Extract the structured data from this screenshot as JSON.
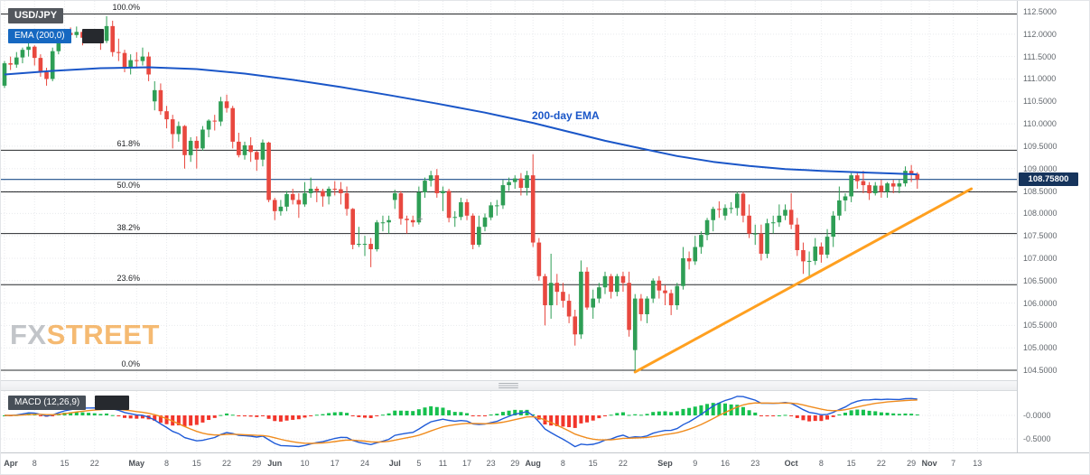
{
  "header": {
    "symbol": "USD/JPY",
    "ema_indicator_label": "EMA (200,0)"
  },
  "annotations": {
    "ema_label": "200-day EMA",
    "watermark_fx": "FX",
    "watermark_street": "STREET",
    "crosshair": "+"
  },
  "macd": {
    "label": "MACD (12,26,9)",
    "axis_labels": [
      {
        "text": "-0.0000",
        "value": 0
      },
      {
        "text": "-0.5000",
        "value": -0.5
      }
    ]
  },
  "price_axis": {
    "current": {
      "text": "108.75800",
      "value": 108.758
    },
    "ticks": [
      {
        "text": "112.5000",
        "value": 112.5
      },
      {
        "text": "112.0000",
        "value": 112.0
      },
      {
        "text": "111.5000",
        "value": 111.5
      },
      {
        "text": "111.0000",
        "value": 111.0
      },
      {
        "text": "110.5000",
        "value": 110.5
      },
      {
        "text": "110.0000",
        "value": 110.0
      },
      {
        "text": "109.5000",
        "value": 109.5
      },
      {
        "text": "109.0000",
        "value": 109.0
      },
      {
        "text": "108.5000",
        "value": 108.5
      },
      {
        "text": "108.0000",
        "value": 108.0
      },
      {
        "text": "107.5000",
        "value": 107.5
      },
      {
        "text": "107.0000",
        "value": 107.0
      },
      {
        "text": "106.5000",
        "value": 106.5
      },
      {
        "text": "106.0000",
        "value": 106.0
      },
      {
        "text": "105.5000",
        "value": 105.5
      },
      {
        "text": "105.0000",
        "value": 105.0
      },
      {
        "text": "104.5000",
        "value": 104.5
      }
    ]
  },
  "time_axis": {
    "labels": [
      {
        "text": "Apr",
        "day": 0
      },
      {
        "text": "8",
        "day": 5
      },
      {
        "text": "15",
        "day": 10
      },
      {
        "text": "22",
        "day": 15
      },
      {
        "text": "May",
        "day": 22
      },
      {
        "text": "8",
        "day": 27
      },
      {
        "text": "15",
        "day": 32
      },
      {
        "text": "22",
        "day": 37
      },
      {
        "text": "29",
        "day": 42
      },
      {
        "text": "Jun",
        "day": 45
      },
      {
        "text": "10",
        "day": 50
      },
      {
        "text": "17",
        "day": 55
      },
      {
        "text": "24",
        "day": 60
      },
      {
        "text": "Jul",
        "day": 65
      },
      {
        "text": "5",
        "day": 69
      },
      {
        "text": "11",
        "day": 73
      },
      {
        "text": "17",
        "day": 77
      },
      {
        "text": "23",
        "day": 81
      },
      {
        "text": "29",
        "day": 85
      },
      {
        "text": "Aug",
        "day": 88
      },
      {
        "text": "8",
        "day": 93
      },
      {
        "text": "15",
        "day": 98
      },
      {
        "text": "22",
        "day": 103
      },
      {
        "text": "Sep",
        "day": 110
      },
      {
        "text": "9",
        "day": 115
      },
      {
        "text": "16",
        "day": 120
      },
      {
        "text": "23",
        "day": 125
      },
      {
        "text": "Oct",
        "day": 131
      },
      {
        "text": "8",
        "day": 136
      },
      {
        "text": "15",
        "day": 141
      },
      {
        "text": "22",
        "day": 146
      },
      {
        "text": "29",
        "day": 151
      },
      {
        "text": "Nov",
        "day": 154
      },
      {
        "text": "7",
        "day": 158
      },
      {
        "text": "13",
        "day": 162
      }
    ]
  },
  "fib_levels": [
    {
      "label": "100.0%",
      "price": 112.45
    },
    {
      "label": "61.8%",
      "price": 109.41
    },
    {
      "label": "50.0%",
      "price": 108.48
    },
    {
      "label": "38.2%",
      "price": 107.55
    },
    {
      "label": "23.6%",
      "price": 106.41
    },
    {
      "label": "0.0%",
      "price": 104.5
    }
  ],
  "colors": {
    "up": "#2e9e55",
    "down": "#e8483f",
    "ema200": "#1a56c8",
    "trendline": "#ffa020",
    "price_line": "#1d4e89",
    "price_badge_bg": "#16345c",
    "fib_line": "#26282b",
    "macd_line": "#1f5bd8",
    "macd_signal": "#f08c1e",
    "macd_hist_up": "#16c04e",
    "macd_hist_down": "#f2352b",
    "symbol_badge_bg": "#53575d",
    "ema_badge_bg": "#1668c1",
    "macd_badge_bg": "#474f58",
    "watermark_fx": "#b4b7bc",
    "watermark_street": "#f3a94f"
  },
  "chart_data": {
    "type": "candlestick",
    "title": "USD/JPY daily with 200-day EMA, Fibonacci retracement and MACD (12,26,9)",
    "ylim": [
      104.5,
      112.5
    ],
    "macd_params": [
      12,
      26,
      9
    ],
    "macd_ylim": [
      -0.75,
      0.45
    ],
    "trendline": {
      "from": {
        "day": 105,
        "price": 104.46
      },
      "to": {
        "day": 161,
        "price": 108.55
      }
    },
    "ema200_anchors": [
      [
        0,
        111.1
      ],
      [
        8,
        111.18
      ],
      [
        16,
        111.24
      ],
      [
        24,
        111.26
      ],
      [
        32,
        111.22
      ],
      [
        40,
        111.12
      ],
      [
        48,
        110.98
      ],
      [
        56,
        110.82
      ],
      [
        64,
        110.64
      ],
      [
        72,
        110.45
      ],
      [
        80,
        110.25
      ],
      [
        88,
        110.02
      ],
      [
        94,
        109.82
      ],
      [
        100,
        109.62
      ],
      [
        106,
        109.45
      ],
      [
        112,
        109.28
      ],
      [
        118,
        109.15
      ],
      [
        124,
        109.06
      ],
      [
        130,
        108.99
      ],
      [
        136,
        108.95
      ],
      [
        142,
        108.92
      ],
      [
        148,
        108.89
      ],
      [
        152,
        108.87
      ]
    ],
    "ohlc": [
      [
        110.85,
        111.4,
        110.8,
        111.35
      ],
      [
        111.35,
        111.5,
        111.2,
        111.32
      ],
      [
        111.32,
        111.6,
        111.25,
        111.48
      ],
      [
        111.48,
        111.7,
        111.35,
        111.65
      ],
      [
        111.65,
        111.8,
        111.5,
        111.72
      ],
      [
        111.72,
        111.75,
        111.3,
        111.47
      ],
      [
        111.47,
        111.55,
        111.05,
        111.15
      ],
      [
        111.15,
        111.25,
        110.85,
        111.0
      ],
      [
        111.0,
        111.7,
        110.95,
        111.62
      ],
      [
        111.62,
        112.05,
        111.55,
        111.98
      ],
      [
        111.98,
        112.1,
        111.85,
        112.03
      ],
      [
        112.03,
        112.15,
        111.9,
        111.98
      ],
      [
        111.98,
        112.17,
        111.92,
        112.05
      ],
      [
        112.05,
        112.1,
        111.75,
        111.92
      ],
      [
        111.92,
        112.0,
        111.82,
        111.93
      ],
      [
        111.93,
        112.05,
        111.8,
        111.92
      ],
      [
        111.92,
        112.0,
        111.65,
        111.85
      ],
      [
        111.85,
        112.4,
        111.8,
        112.18
      ],
      [
        112.18,
        112.3,
        111.5,
        111.6
      ],
      [
        111.6,
        111.9,
        111.4,
        111.58
      ],
      [
        111.58,
        111.65,
        111.15,
        111.27
      ],
      [
        111.27,
        111.55,
        111.1,
        111.42
      ],
      [
        111.42,
        111.6,
        111.25,
        111.4
      ],
      [
        111.4,
        111.7,
        111.3,
        111.5
      ],
      [
        111.5,
        111.6,
        110.95,
        111.1
      ],
      [
        110.5,
        110.95,
        110.3,
        110.75
      ],
      [
        110.75,
        110.9,
        110.2,
        110.28
      ],
      [
        110.28,
        110.4,
        109.9,
        110.1
      ],
      [
        110.1,
        110.2,
        109.45,
        109.77
      ],
      [
        109.77,
        110.05,
        109.6,
        109.95
      ],
      [
        109.95,
        109.97,
        109.0,
        109.3
      ],
      [
        109.3,
        109.7,
        109.15,
        109.62
      ],
      [
        109.62,
        109.72,
        109.0,
        109.45
      ],
      [
        109.45,
        109.95,
        109.4,
        109.87
      ],
      [
        109.87,
        110.1,
        109.7,
        110.07
      ],
      [
        110.07,
        110.2,
        109.85,
        110.05
      ],
      [
        110.05,
        110.6,
        109.95,
        110.5
      ],
      [
        110.5,
        110.65,
        110.25,
        110.35
      ],
      [
        110.35,
        110.4,
        109.45,
        109.6
      ],
      [
        109.6,
        109.8,
        109.25,
        109.3
      ],
      [
        109.3,
        109.6,
        109.2,
        109.52
      ],
      [
        109.52,
        109.7,
        109.15,
        109.37
      ],
      [
        109.37,
        109.4,
        108.95,
        109.2
      ],
      [
        109.2,
        109.65,
        109.05,
        109.58
      ],
      [
        109.58,
        109.6,
        108.25,
        108.3
      ],
      [
        108.3,
        108.35,
        107.85,
        108.05
      ],
      [
        108.05,
        108.3,
        107.95,
        108.15
      ],
      [
        108.15,
        108.5,
        108.05,
        108.43
      ],
      [
        108.43,
        108.55,
        108.2,
        108.3
      ],
      [
        108.3,
        108.45,
        107.9,
        108.2
      ],
      [
        108.2,
        108.7,
        108.15,
        108.45
      ],
      [
        108.45,
        108.8,
        108.35,
        108.55
      ],
      [
        108.55,
        108.6,
        108.25,
        108.5
      ],
      [
        108.5,
        108.55,
        108.15,
        108.38
      ],
      [
        108.38,
        108.6,
        108.2,
        108.55
      ],
      [
        108.55,
        108.72,
        108.4,
        108.54
      ],
      [
        108.54,
        108.7,
        108.2,
        108.45
      ],
      [
        108.45,
        108.6,
        107.95,
        108.1
      ],
      [
        108.1,
        108.12,
        107.2,
        107.3
      ],
      [
        107.3,
        107.7,
        107.25,
        107.32
      ],
      [
        107.32,
        107.5,
        107.05,
        107.32
      ],
      [
        107.32,
        107.45,
        106.8,
        107.2
      ],
      [
        107.2,
        107.85,
        107.15,
        107.8
      ],
      [
        107.8,
        107.95,
        107.6,
        107.8
      ],
      [
        107.8,
        107.95,
        107.55,
        107.85
      ],
      [
        108.3,
        108.53,
        108.1,
        108.45
      ],
      [
        108.45,
        108.5,
        107.75,
        107.88
      ],
      [
        107.88,
        107.95,
        107.55,
        107.85
      ],
      [
        107.85,
        107.95,
        107.7,
        107.8
      ],
      [
        107.8,
        108.6,
        107.75,
        108.47
      ],
      [
        108.47,
        108.8,
        108.35,
        108.73
      ],
      [
        108.73,
        108.95,
        108.6,
        108.85
      ],
      [
        108.85,
        108.99,
        108.35,
        108.45
      ],
      [
        108.45,
        108.6,
        108.05,
        108.5
      ],
      [
        108.5,
        108.55,
        107.8,
        107.9
      ],
      [
        107.9,
        108.05,
        107.7,
        107.92
      ],
      [
        107.92,
        108.35,
        107.85,
        108.25
      ],
      [
        108.25,
        108.32,
        107.85,
        107.95
      ],
      [
        107.95,
        108.0,
        107.2,
        107.3
      ],
      [
        107.3,
        107.95,
        107.25,
        107.7
      ],
      [
        107.7,
        108.0,
        107.6,
        107.91
      ],
      [
        107.91,
        108.25,
        107.85,
        108.18
      ],
      [
        108.18,
        108.3,
        107.95,
        108.18
      ],
      [
        108.18,
        108.75,
        108.1,
        108.63
      ],
      [
        108.63,
        108.8,
        108.5,
        108.7
      ],
      [
        108.7,
        108.85,
        108.55,
        108.78
      ],
      [
        108.78,
        108.9,
        108.4,
        108.57
      ],
      [
        108.57,
        108.95,
        108.4,
        108.85
      ],
      [
        108.85,
        109.32,
        107.25,
        107.35
      ],
      [
        107.35,
        107.45,
        106.5,
        106.6
      ],
      [
        106.6,
        106.65,
        105.5,
        105.95
      ],
      [
        105.95,
        107.1,
        105.65,
        106.45
      ],
      [
        106.45,
        106.65,
        105.95,
        106.25
      ],
      [
        106.25,
        106.45,
        105.9,
        106.05
      ],
      [
        106.05,
        106.2,
        105.55,
        105.7
      ],
      [
        105.7,
        105.85,
        105.05,
        105.3
      ],
      [
        105.3,
        106.95,
        105.2,
        106.7
      ],
      [
        106.7,
        106.8,
        105.85,
        105.9
      ],
      [
        105.9,
        106.3,
        105.65,
        106.1
      ],
      [
        106.1,
        106.45,
        106.0,
        106.35
      ],
      [
        106.35,
        106.7,
        106.2,
        106.6
      ],
      [
        106.6,
        106.65,
        106.1,
        106.25
      ],
      [
        106.25,
        106.65,
        106.15,
        106.6
      ],
      [
        106.6,
        106.7,
        106.25,
        106.45
      ],
      [
        106.45,
        106.7,
        105.25,
        105.4
      ],
      [
        104.95,
        106.2,
        104.46,
        106.1
      ],
      [
        106.1,
        106.2,
        105.6,
        105.75
      ],
      [
        105.75,
        106.15,
        105.55,
        106.1
      ],
      [
        106.1,
        106.55,
        106.0,
        106.5
      ],
      [
        106.5,
        106.6,
        106.1,
        106.28
      ],
      [
        106.28,
        106.4,
        105.95,
        106.22
      ],
      [
        106.22,
        106.3,
        105.73,
        105.95
      ],
      [
        105.95,
        106.45,
        105.85,
        106.38
      ],
      [
        106.38,
        107.25,
        106.3,
        107.0
      ],
      [
        107.0,
        107.15,
        106.75,
        106.93
      ],
      [
        106.93,
        107.5,
        106.85,
        107.25
      ],
      [
        107.25,
        107.6,
        107.1,
        107.52
      ],
      [
        107.52,
        107.9,
        107.4,
        107.85
      ],
      [
        107.85,
        108.15,
        107.6,
        108.1
      ],
      [
        108.1,
        108.27,
        107.9,
        108.08
      ],
      [
        107.95,
        108.2,
        107.85,
        108.12
      ],
      [
        108.12,
        108.25,
        108.0,
        108.12
      ],
      [
        108.12,
        108.48,
        107.95,
        108.44
      ],
      [
        108.44,
        108.48,
        107.8,
        107.95
      ],
      [
        107.95,
        108.2,
        107.45,
        107.55
      ],
      [
        107.55,
        107.75,
        107.3,
        107.55
      ],
      [
        107.55,
        107.75,
        106.95,
        107.1
      ],
      [
        107.1,
        107.88,
        107.0,
        107.78
      ],
      [
        107.78,
        107.95,
        107.55,
        107.8
      ],
      [
        107.8,
        108.2,
        107.7,
        107.95
      ],
      [
        107.95,
        108.2,
        107.85,
        108.08
      ],
      [
        108.08,
        108.45,
        107.65,
        107.75
      ],
      [
        107.75,
        107.9,
        107.05,
        107.18
      ],
      [
        107.18,
        107.35,
        106.65,
        106.93
      ],
      [
        106.93,
        107.15,
        106.6,
        106.94
      ],
      [
        106.94,
        107.45,
        106.85,
        107.26
      ],
      [
        107.26,
        107.35,
        106.9,
        107.08
      ],
      [
        107.08,
        107.65,
        107.0,
        107.48
      ],
      [
        107.48,
        108.05,
        107.25,
        107.95
      ],
      [
        107.95,
        108.6,
        107.85,
        108.29
      ],
      [
        108.29,
        108.45,
        108.05,
        108.38
      ],
      [
        108.38,
        108.9,
        108.25,
        108.85
      ],
      [
        108.85,
        108.9,
        108.55,
        108.72
      ],
      [
        108.72,
        108.95,
        108.45,
        108.63
      ],
      [
        108.63,
        108.7,
        108.3,
        108.45
      ],
      [
        108.45,
        108.7,
        108.4,
        108.62
      ],
      [
        108.62,
        108.75,
        108.35,
        108.48
      ],
      [
        108.48,
        108.7,
        108.35,
        108.67
      ],
      [
        108.67,
        108.75,
        108.45,
        108.6
      ],
      [
        108.6,
        108.75,
        108.45,
        108.67
      ],
      [
        108.67,
        109.05,
        108.6,
        108.95
      ],
      [
        108.95,
        109.08,
        108.7,
        108.88
      ],
      [
        108.88,
        108.92,
        108.55,
        108.76
      ]
    ]
  }
}
